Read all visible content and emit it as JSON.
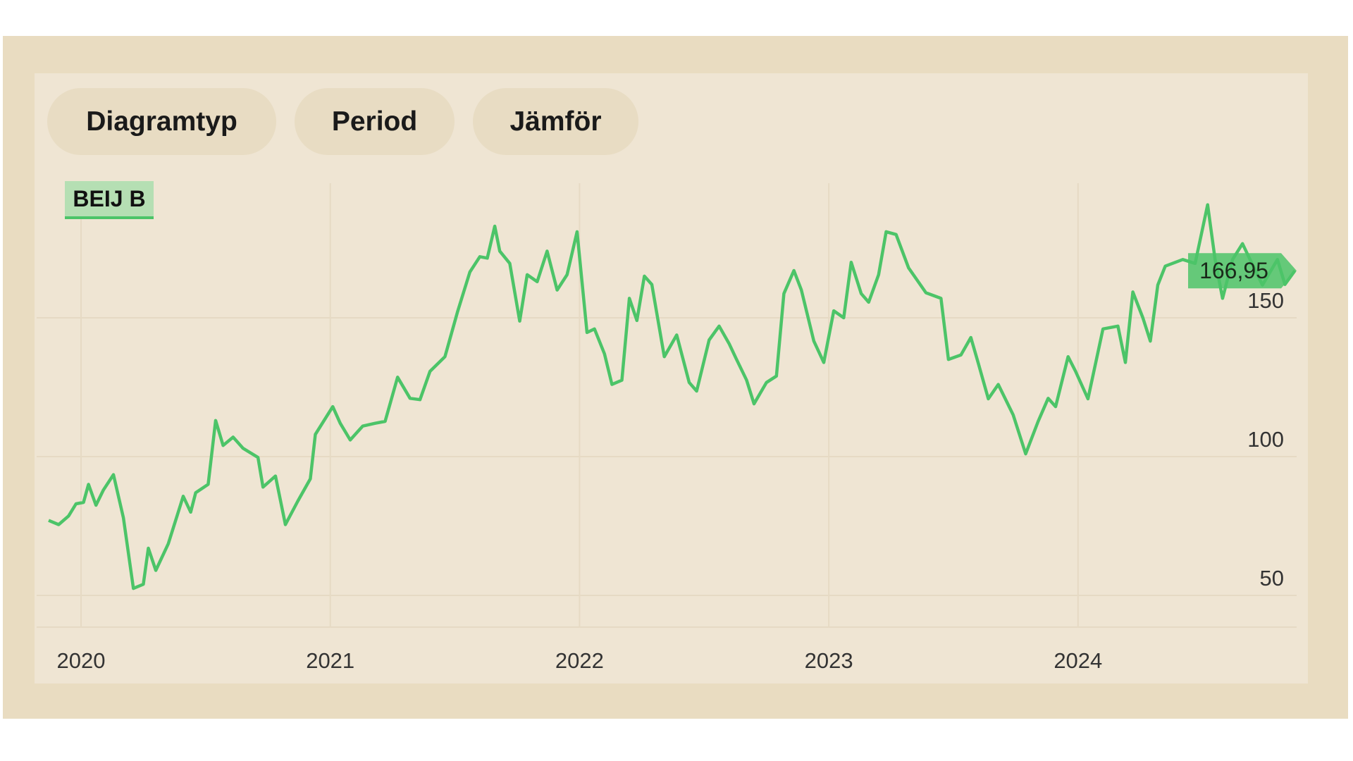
{
  "toolbar": {
    "buttons": [
      {
        "label": "Diagramtyp"
      },
      {
        "label": "Period"
      },
      {
        "label": "Jämför"
      }
    ]
  },
  "colors": {
    "line": "#4cc468",
    "frame": "#e9dcc1",
    "panel": "#efe5d3",
    "grid": "#e6dac4"
  },
  "chart_data": {
    "type": "line",
    "title": "",
    "xlabel": "",
    "ylabel": "",
    "x_ticks": [
      "2020",
      "2021",
      "2022",
      "2023",
      "2024"
    ],
    "y_ticks": [
      50,
      100,
      150
    ],
    "ylim": [
      39,
      200
    ],
    "xlim": [
      2019.87,
      2024.89
    ],
    "grid": true,
    "y_axis_side": "right",
    "series": [
      {
        "name": "BEIJ B",
        "last_value_label": "166,95",
        "x": [
          2019.87,
          2019.91,
          2019.95,
          2019.98,
          2020.01,
          2020.03,
          2020.06,
          2020.09,
          2020.13,
          2020.17,
          2020.21,
          2020.25,
          2020.27,
          2020.3,
          2020.35,
          2020.41,
          2020.44,
          2020.46,
          2020.51,
          2020.54,
          2020.57,
          2020.61,
          2020.65,
          2020.71,
          2020.73,
          2020.78,
          2020.82,
          2020.87,
          2020.92,
          2020.94,
          2021.01,
          2021.04,
          2021.08,
          2021.13,
          2021.18,
          2021.22,
          2021.27,
          2021.32,
          2021.36,
          2021.4,
          2021.46,
          2021.51,
          2021.56,
          2021.6,
          2021.63,
          2021.66,
          2021.68,
          2021.72,
          2021.76,
          2021.79,
          2021.83,
          2021.87,
          2021.91,
          2021.95,
          2021.99,
          2022.03,
          2022.06,
          2022.1,
          2022.13,
          2022.17,
          2022.2,
          2022.23,
          2022.26,
          2022.29,
          2022.34,
          2022.39,
          2022.44,
          2022.47,
          2022.52,
          2022.56,
          2022.6,
          2022.63,
          2022.67,
          2022.7,
          2022.75,
          2022.79,
          2022.82,
          2022.86,
          2022.89,
          2022.94,
          2022.98,
          2023.02,
          2023.06,
          2023.09,
          2023.13,
          2023.16,
          2023.2,
          2023.23,
          2023.27,
          2023.32,
          2023.39,
          2023.45,
          2023.48,
          2023.53,
          2023.57,
          2023.6,
          2023.64,
          2023.68,
          2023.74,
          2023.79,
          2023.84,
          2023.88,
          2023.91,
          2023.96,
          2023.99,
          2024.04,
          2024.1,
          2024.16,
          2024.19,
          2024.22,
          2024.26,
          2024.29,
          2024.32,
          2024.35,
          2024.42,
          2024.47,
          2024.52,
          2024.55,
          2024.58,
          2024.62,
          2024.66,
          2024.69,
          2024.74,
          2024.8,
          2024.83,
          2024.87
        ],
        "y": [
          77,
          75.5,
          78.6,
          83,
          83.5,
          90,
          82.5,
          88,
          93.5,
          78,
          52.5,
          54,
          67,
          59,
          68.6,
          85.7,
          80,
          87,
          90,
          113,
          104,
          107,
          103,
          99.7,
          89,
          93,
          75.5,
          84,
          92,
          108,
          118,
          112,
          106,
          111,
          112,
          112.7,
          128.6,
          121,
          120.5,
          130.7,
          136,
          152,
          166.5,
          172,
          171.5,
          183,
          174,
          169.6,
          148.8,
          165.5,
          163,
          174,
          160,
          165.5,
          181,
          144.7,
          146,
          137,
          126,
          127.5,
          157,
          149,
          165,
          162,
          136,
          143.8,
          126.7,
          123.6,
          142,
          147,
          140.7,
          135,
          127.6,
          119,
          126.7,
          129,
          158.7,
          167,
          160,
          141.6,
          133.9,
          152.5,
          150,
          170,
          158.7,
          155.6,
          165.5,
          181,
          180,
          168,
          159,
          157,
          135,
          136.6,
          142.9,
          133.6,
          120.8,
          126,
          115,
          101,
          112.7,
          121,
          118,
          136,
          130.7,
          120.8,
          146,
          147,
          133.9,
          159.3,
          150,
          141.6,
          161.8,
          168.6,
          171,
          169.6,
          190.7,
          171,
          157,
          171,
          176.7,
          171,
          161.8,
          171,
          162,
          166.95
        ]
      }
    ]
  }
}
